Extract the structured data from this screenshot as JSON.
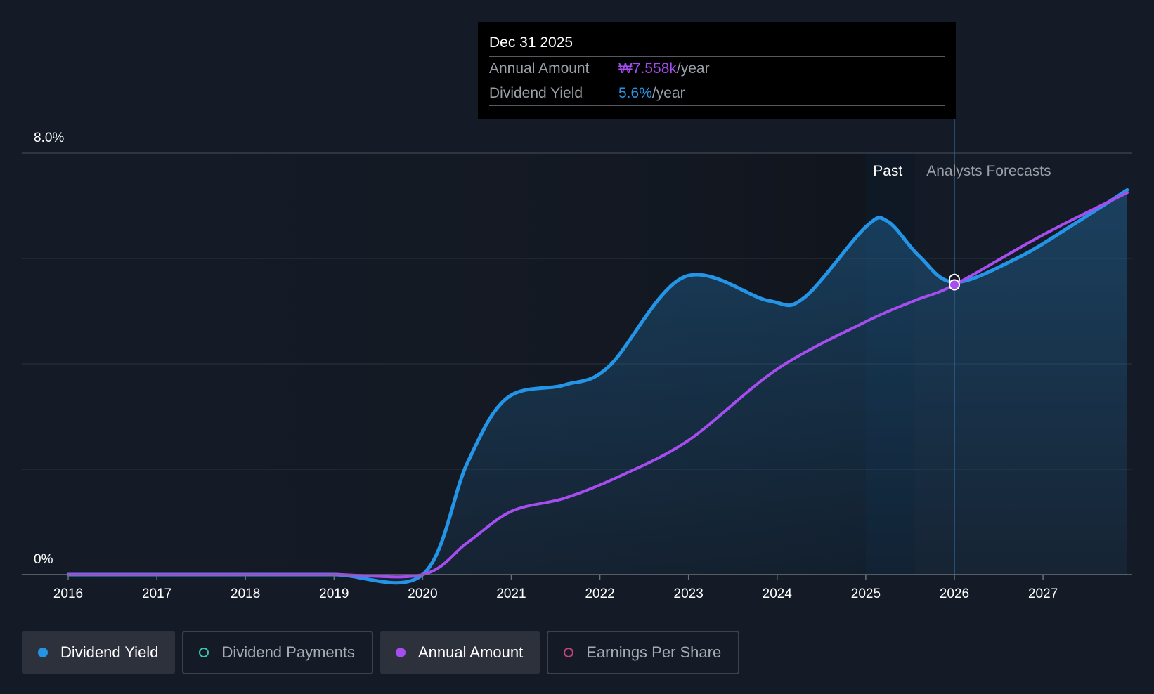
{
  "tooltip": {
    "date": "Dec 31 2025",
    "rows": [
      {
        "key": "Annual Amount",
        "value": "₩7.558k",
        "unit": "/year"
      },
      {
        "key": "Dividend Yield",
        "value": "5.6%",
        "unit": "/year"
      }
    ]
  },
  "regions": {
    "past": "Past",
    "forecast": "Analysts Forecasts"
  },
  "legend": [
    {
      "label": "Dividend Yield",
      "color": "#2394e6",
      "active": true
    },
    {
      "label": "Dividend Payments",
      "color": "#3fc1b0",
      "active": false
    },
    {
      "label": "Annual Amount",
      "color": "#a64df0",
      "active": true
    },
    {
      "label": "Earnings Per Share",
      "color": "#c8457a",
      "active": false
    }
  ],
  "colors": {
    "yield": "#2394e6",
    "amount": "#a64df0",
    "background": "#151b26"
  },
  "chart_data": {
    "type": "line",
    "title": "",
    "xlabel": "",
    "ylabel": "",
    "y_axis_labels": [
      "0%",
      "8.0%"
    ],
    "ylim": [
      0,
      8.0
    ],
    "xlim": [
      2015.5,
      2027.95
    ],
    "x_ticks": [
      "2016",
      "2017",
      "2018",
      "2019",
      "2020",
      "2021",
      "2022",
      "2023",
      "2024",
      "2025",
      "2026",
      "2027"
    ],
    "grid": true,
    "past_forecast_boundary": 2025.55,
    "series": [
      {
        "name": "Dividend Yield",
        "values": [
          [
            2016.0,
            0
          ],
          [
            2017.0,
            0
          ],
          [
            2018.0,
            0
          ],
          [
            2019.0,
            0
          ],
          [
            2020.0,
            0
          ],
          [
            2020.5,
            2.1
          ],
          [
            2020.95,
            3.35
          ],
          [
            2021.6,
            3.6
          ],
          [
            2022.1,
            3.95
          ],
          [
            2022.95,
            5.65
          ],
          [
            2023.9,
            5.2
          ],
          [
            2024.3,
            5.25
          ],
          [
            2025.0,
            6.6
          ],
          [
            2025.25,
            6.7
          ],
          [
            2025.6,
            6.05
          ],
          [
            2026.0,
            5.55
          ],
          [
            2026.7,
            6.0
          ],
          [
            2027.3,
            6.6
          ],
          [
            2027.95,
            7.3
          ]
        ]
      },
      {
        "name": "Annual Amount",
        "values": [
          [
            2016.0,
            0
          ],
          [
            2017.0,
            0
          ],
          [
            2018.0,
            0
          ],
          [
            2019.0,
            0
          ],
          [
            2020.0,
            0
          ],
          [
            2020.5,
            0.6
          ],
          [
            2021.0,
            1.2
          ],
          [
            2021.6,
            1.45
          ],
          [
            2022.2,
            1.85
          ],
          [
            2023.0,
            2.55
          ],
          [
            2024.0,
            3.9
          ],
          [
            2025.0,
            4.8
          ],
          [
            2025.55,
            5.2
          ],
          [
            2026.0,
            5.5
          ],
          [
            2027.0,
            6.45
          ],
          [
            2027.95,
            7.25
          ]
        ]
      }
    ],
    "highlight_point": {
      "x": 2026.0,
      "yield": 5.6,
      "amount_label": "₩7.558k"
    }
  }
}
